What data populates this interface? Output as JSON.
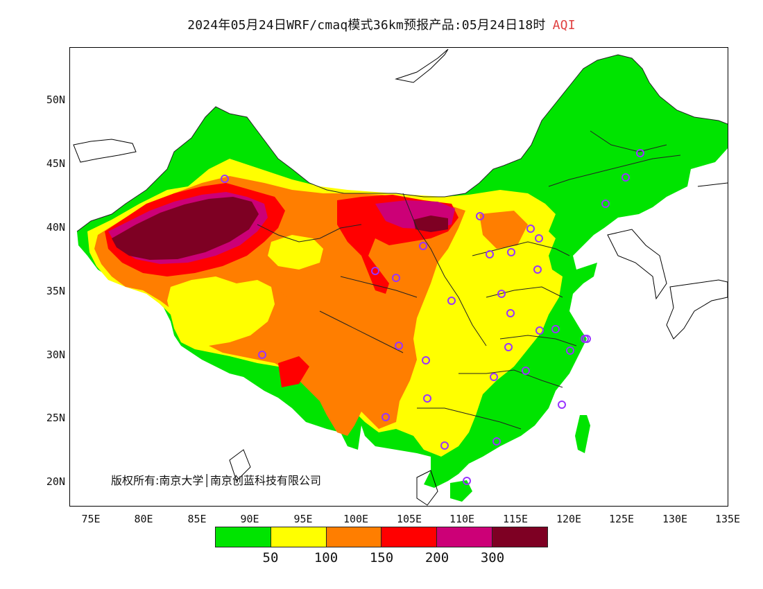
{
  "title": {
    "main": "2024年05月24日WRF/cmaq模式36km预报产品:05月24日18时",
    "variable": "AQI"
  },
  "copyright": "版权所有:南京大学│南京创蓝科技有限公司",
  "axes": {
    "lat_labels": [
      "50N",
      "45N",
      "40N",
      "35N",
      "30N",
      "25N",
      "20N"
    ],
    "lon_labels": [
      "75E",
      "80E",
      "85E",
      "90E",
      "95E",
      "100E",
      "105E",
      "110E",
      "115E",
      "120E",
      "125E",
      "130E",
      "135E"
    ]
  },
  "legend": {
    "colors": [
      "#00e400",
      "#ffff00",
      "#ff7e00",
      "#ff0000",
      "#cc0077",
      "#7e0023"
    ],
    "ticks": [
      "50",
      "100",
      "150",
      "200",
      "300"
    ]
  },
  "colors": {
    "good": "#00e400",
    "moderate": "#ffff00",
    "usg": "#ff7e00",
    "unhealthy": "#ff0000",
    "very_unhealthy": "#cc0077",
    "hazardous": "#7e0023",
    "city_marker": "#9933ff"
  }
}
